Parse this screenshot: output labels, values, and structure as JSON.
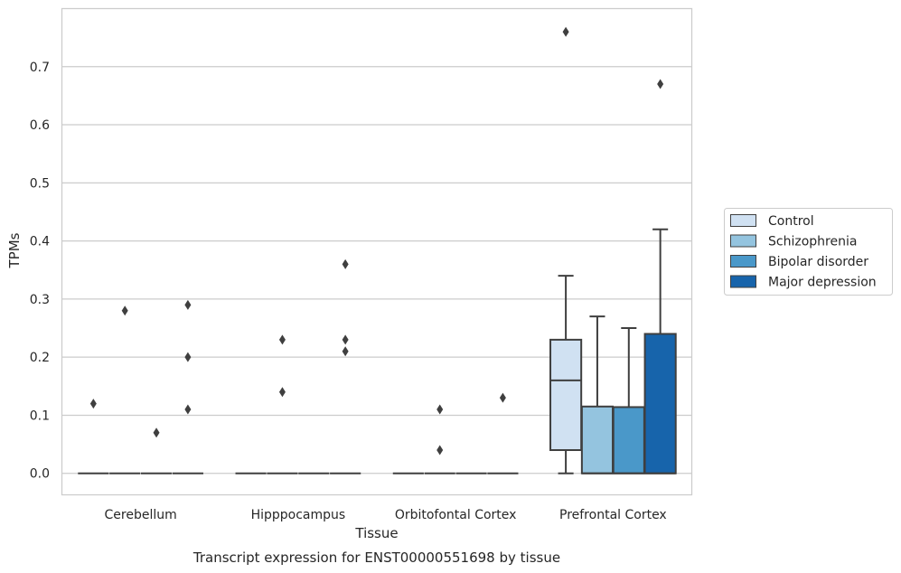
{
  "chart_data": {
    "type": "box",
    "title": "",
    "caption": "Transcript expression for ENST00000551698 by tissue",
    "xlabel": "Tissue",
    "ylabel": "TPMs",
    "ylim": [
      -0.037,
      0.8
    ],
    "yticks": [
      0.0,
      0.1,
      0.2,
      0.3,
      0.4,
      0.5,
      0.6,
      0.7
    ],
    "grid": "horizontal",
    "legend_position": "right",
    "categories": [
      "Cerebellum",
      "Hipppocampus",
      "Orbitofontal Cortex",
      "Prefrontal Cortex"
    ],
    "series": [
      {
        "name": "Control",
        "color": "#d0e1f2",
        "boxes": [
          {
            "q1": 0.0,
            "median": 0.0,
            "q3": 0.0,
            "whisker_low": 0.0,
            "whisker_high": 0.0,
            "outliers": [
              0.12
            ]
          },
          {
            "q1": 0.0,
            "median": 0.0,
            "q3": 0.0,
            "whisker_low": 0.0,
            "whisker_high": 0.0,
            "outliers": []
          },
          {
            "q1": 0.0,
            "median": 0.0,
            "q3": 0.0,
            "whisker_low": 0.0,
            "whisker_high": 0.0,
            "outliers": []
          },
          {
            "q1": 0.04,
            "median": 0.16,
            "q3": 0.23,
            "whisker_low": 0.0,
            "whisker_high": 0.34,
            "outliers": [
              0.76
            ]
          }
        ]
      },
      {
        "name": "Schizophrenia",
        "color": "#94c4df",
        "boxes": [
          {
            "q1": 0.0,
            "median": 0.0,
            "q3": 0.0,
            "whisker_low": 0.0,
            "whisker_high": 0.0,
            "outliers": [
              0.28
            ]
          },
          {
            "q1": 0.0,
            "median": 0.0,
            "q3": 0.0,
            "whisker_low": 0.0,
            "whisker_high": 0.0,
            "outliers": [
              0.23,
              0.14
            ]
          },
          {
            "q1": 0.0,
            "median": 0.0,
            "q3": 0.0,
            "whisker_low": 0.0,
            "whisker_high": 0.0,
            "outliers": [
              0.11,
              0.04
            ]
          },
          {
            "q1": 0.0,
            "median": 0.0,
            "q3": 0.115,
            "whisker_low": 0.0,
            "whisker_high": 0.27,
            "outliers": []
          }
        ]
      },
      {
        "name": "Bipolar disorder",
        "color": "#4a98c9",
        "boxes": [
          {
            "q1": 0.0,
            "median": 0.0,
            "q3": 0.0,
            "whisker_low": 0.0,
            "whisker_high": 0.0,
            "outliers": [
              0.07
            ]
          },
          {
            "q1": 0.0,
            "median": 0.0,
            "q3": 0.0,
            "whisker_low": 0.0,
            "whisker_high": 0.0,
            "outliers": []
          },
          {
            "q1": 0.0,
            "median": 0.0,
            "q3": 0.0,
            "whisker_low": 0.0,
            "whisker_high": 0.0,
            "outliers": []
          },
          {
            "q1": 0.0,
            "median": 0.0,
            "q3": 0.114,
            "whisker_low": 0.0,
            "whisker_high": 0.25,
            "outliers": []
          }
        ]
      },
      {
        "name": "Major depression",
        "color": "#1764ab",
        "boxes": [
          {
            "q1": 0.0,
            "median": 0.0,
            "q3": 0.0,
            "whisker_low": 0.0,
            "whisker_high": 0.0,
            "outliers": [
              0.29,
              0.2,
              0.11
            ]
          },
          {
            "q1": 0.0,
            "median": 0.0,
            "q3": 0.0,
            "whisker_low": 0.0,
            "whisker_high": 0.0,
            "outliers": [
              0.36,
              0.23,
              0.21
            ]
          },
          {
            "q1": 0.0,
            "median": 0.0,
            "q3": 0.0,
            "whisker_low": 0.0,
            "whisker_high": 0.0,
            "outliers": [
              0.13
            ]
          },
          {
            "q1": 0.0,
            "median": 0.0,
            "q3": 0.24,
            "whisker_low": 0.0,
            "whisker_high": 0.42,
            "outliers": [
              0.67
            ]
          }
        ]
      }
    ]
  }
}
